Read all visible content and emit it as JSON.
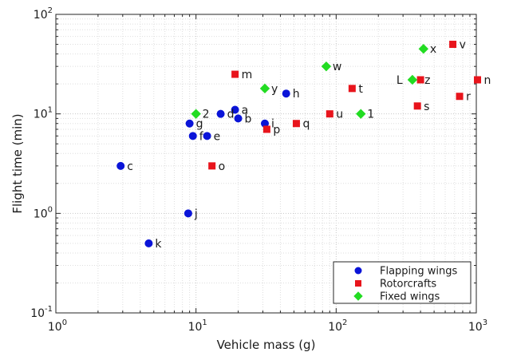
{
  "chart_data": {
    "type": "scatter",
    "title": "",
    "xlabel": "Vehicle mass (g)",
    "ylabel": "Flight time (min)",
    "xscale": "log",
    "yscale": "log",
    "xlim": [
      1,
      1000
    ],
    "ylim": [
      0.1,
      100
    ],
    "x_ticks": [
      {
        "base": "10",
        "exp": "0"
      },
      {
        "base": "10",
        "exp": "1"
      },
      {
        "base": "10",
        "exp": "2"
      },
      {
        "base": "10",
        "exp": "3"
      }
    ],
    "y_ticks": [
      {
        "base": "10",
        "exp": "-1"
      },
      {
        "base": "10",
        "exp": "0"
      },
      {
        "base": "10",
        "exp": "1"
      },
      {
        "base": "10",
        "exp": "2"
      }
    ],
    "grid": true,
    "legend_position": "bottom-right",
    "series": [
      {
        "name": "Flapping wings",
        "marker": "circle",
        "color": "#0a14d8",
        "points": [
          {
            "x": 19,
            "y": 11,
            "label": "a"
          },
          {
            "x": 20,
            "y": 9,
            "label": "b"
          },
          {
            "x": 2.9,
            "y": 3,
            "label": "c"
          },
          {
            "x": 15,
            "y": 10,
            "label": "d"
          },
          {
            "x": 12,
            "y": 6,
            "label": "e"
          },
          {
            "x": 9.5,
            "y": 6,
            "label": "f"
          },
          {
            "x": 9,
            "y": 8,
            "label": "g"
          },
          {
            "x": 44,
            "y": 16,
            "label": "h"
          },
          {
            "x": 31,
            "y": 8,
            "label": "i"
          },
          {
            "x": 8.8,
            "y": 1,
            "label": "j"
          },
          {
            "x": 4.6,
            "y": 0.5,
            "label": "k"
          }
        ]
      },
      {
        "name": "Rotorcrafts",
        "marker": "square",
        "color": "#e8141c",
        "points": [
          {
            "x": 19,
            "y": 25,
            "label": "m"
          },
          {
            "x": 13,
            "y": 3,
            "label": "o"
          },
          {
            "x": 32,
            "y": 7,
            "label": "p"
          },
          {
            "x": 52,
            "y": 8,
            "label": "q"
          },
          {
            "x": 90,
            "y": 10,
            "label": "u"
          },
          {
            "x": 130,
            "y": 18,
            "label": "t"
          },
          {
            "x": 380,
            "y": 12,
            "label": "s"
          },
          {
            "x": 400,
            "y": 22,
            "label": "z"
          },
          {
            "x": 680,
            "y": 50,
            "label": "v"
          },
          {
            "x": 760,
            "y": 15,
            "label": "r"
          },
          {
            "x": 1020,
            "y": 22,
            "label": "n"
          }
        ]
      },
      {
        "name": "Fixed wings",
        "marker": "diamond",
        "color": "#22dc22",
        "points": [
          {
            "x": 10,
            "y": 10,
            "label": "2"
          },
          {
            "x": 31,
            "y": 18,
            "label": "y"
          },
          {
            "x": 85,
            "y": 30,
            "label": "w"
          },
          {
            "x": 150,
            "y": 10,
            "label": "1"
          },
          {
            "x": 350,
            "y": 22,
            "label": "L"
          },
          {
            "x": 420,
            "y": 45,
            "label": "x"
          }
        ]
      }
    ]
  }
}
